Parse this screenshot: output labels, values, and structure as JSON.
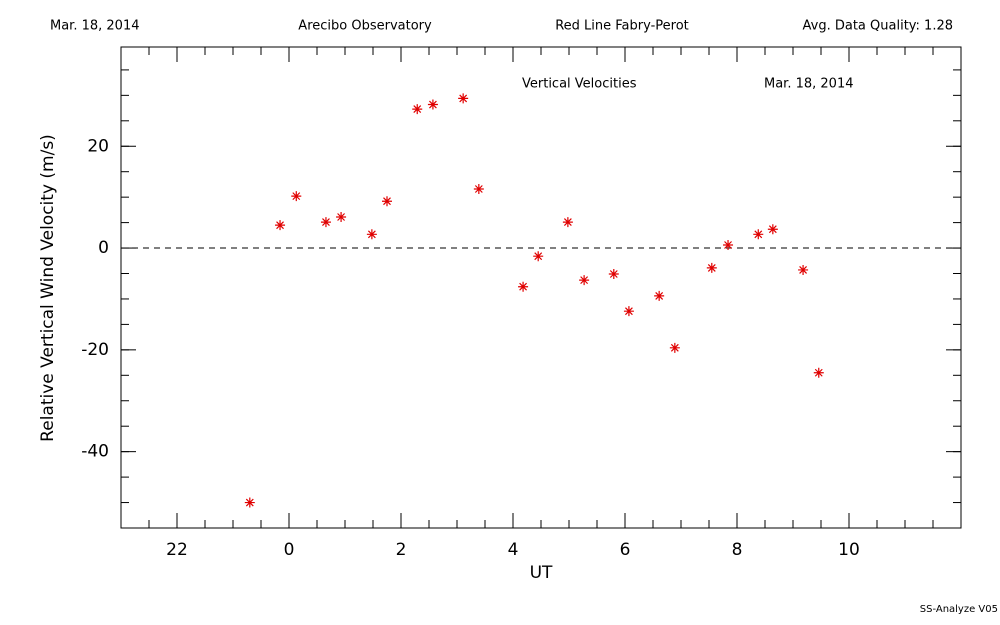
{
  "chart_data": {
    "type": "scatter",
    "header": [
      "Mar. 18, 2014",
      "Arecibo Observatory",
      "Red Line Fabry-Perot",
      "Avg. Data Quality: 1.28"
    ],
    "title": "Vertical Velocities",
    "annotation": "Mar. 18, 2014",
    "footer": "SS-Analyze V05",
    "xlabel": "UT",
    "ylabel": "Relative Vertical Wind Velocity (m/s)",
    "color": "#e00000",
    "marker": "asterisk",
    "hline": 0,
    "xlim": [
      -3,
      12
    ],
    "ylim": [
      -55,
      39.5
    ],
    "xticks": [
      {
        "value": -2,
        "label": "22"
      },
      0,
      2,
      4,
      6,
      8,
      10
    ],
    "yticks": [
      -40,
      -20,
      0,
      20
    ],
    "minor_tick_step": {
      "x": 0.5,
      "y": 5
    },
    "x": [
      -0.7,
      -0.16,
      0.13,
      0.66,
      0.93,
      1.48,
      1.75,
      2.29,
      2.57,
      3.11,
      3.39,
      4.18,
      4.45,
      4.98,
      5.27,
      5.8,
      6.07,
      6.61,
      6.89,
      7.55,
      7.84,
      8.38,
      8.64,
      9.18,
      9.46
    ],
    "values": [
      -50,
      4.5,
      10.2,
      5.1,
      6.1,
      2.7,
      9.2,
      27.3,
      28.2,
      29.4,
      11.6,
      -7.6,
      -1.6,
      5.1,
      -6.3,
      -5.1,
      -12.4,
      -9.4,
      -19.6,
      -3.9,
      0.6,
      2.7,
      3.7,
      -4.3,
      -24.5
    ]
  }
}
